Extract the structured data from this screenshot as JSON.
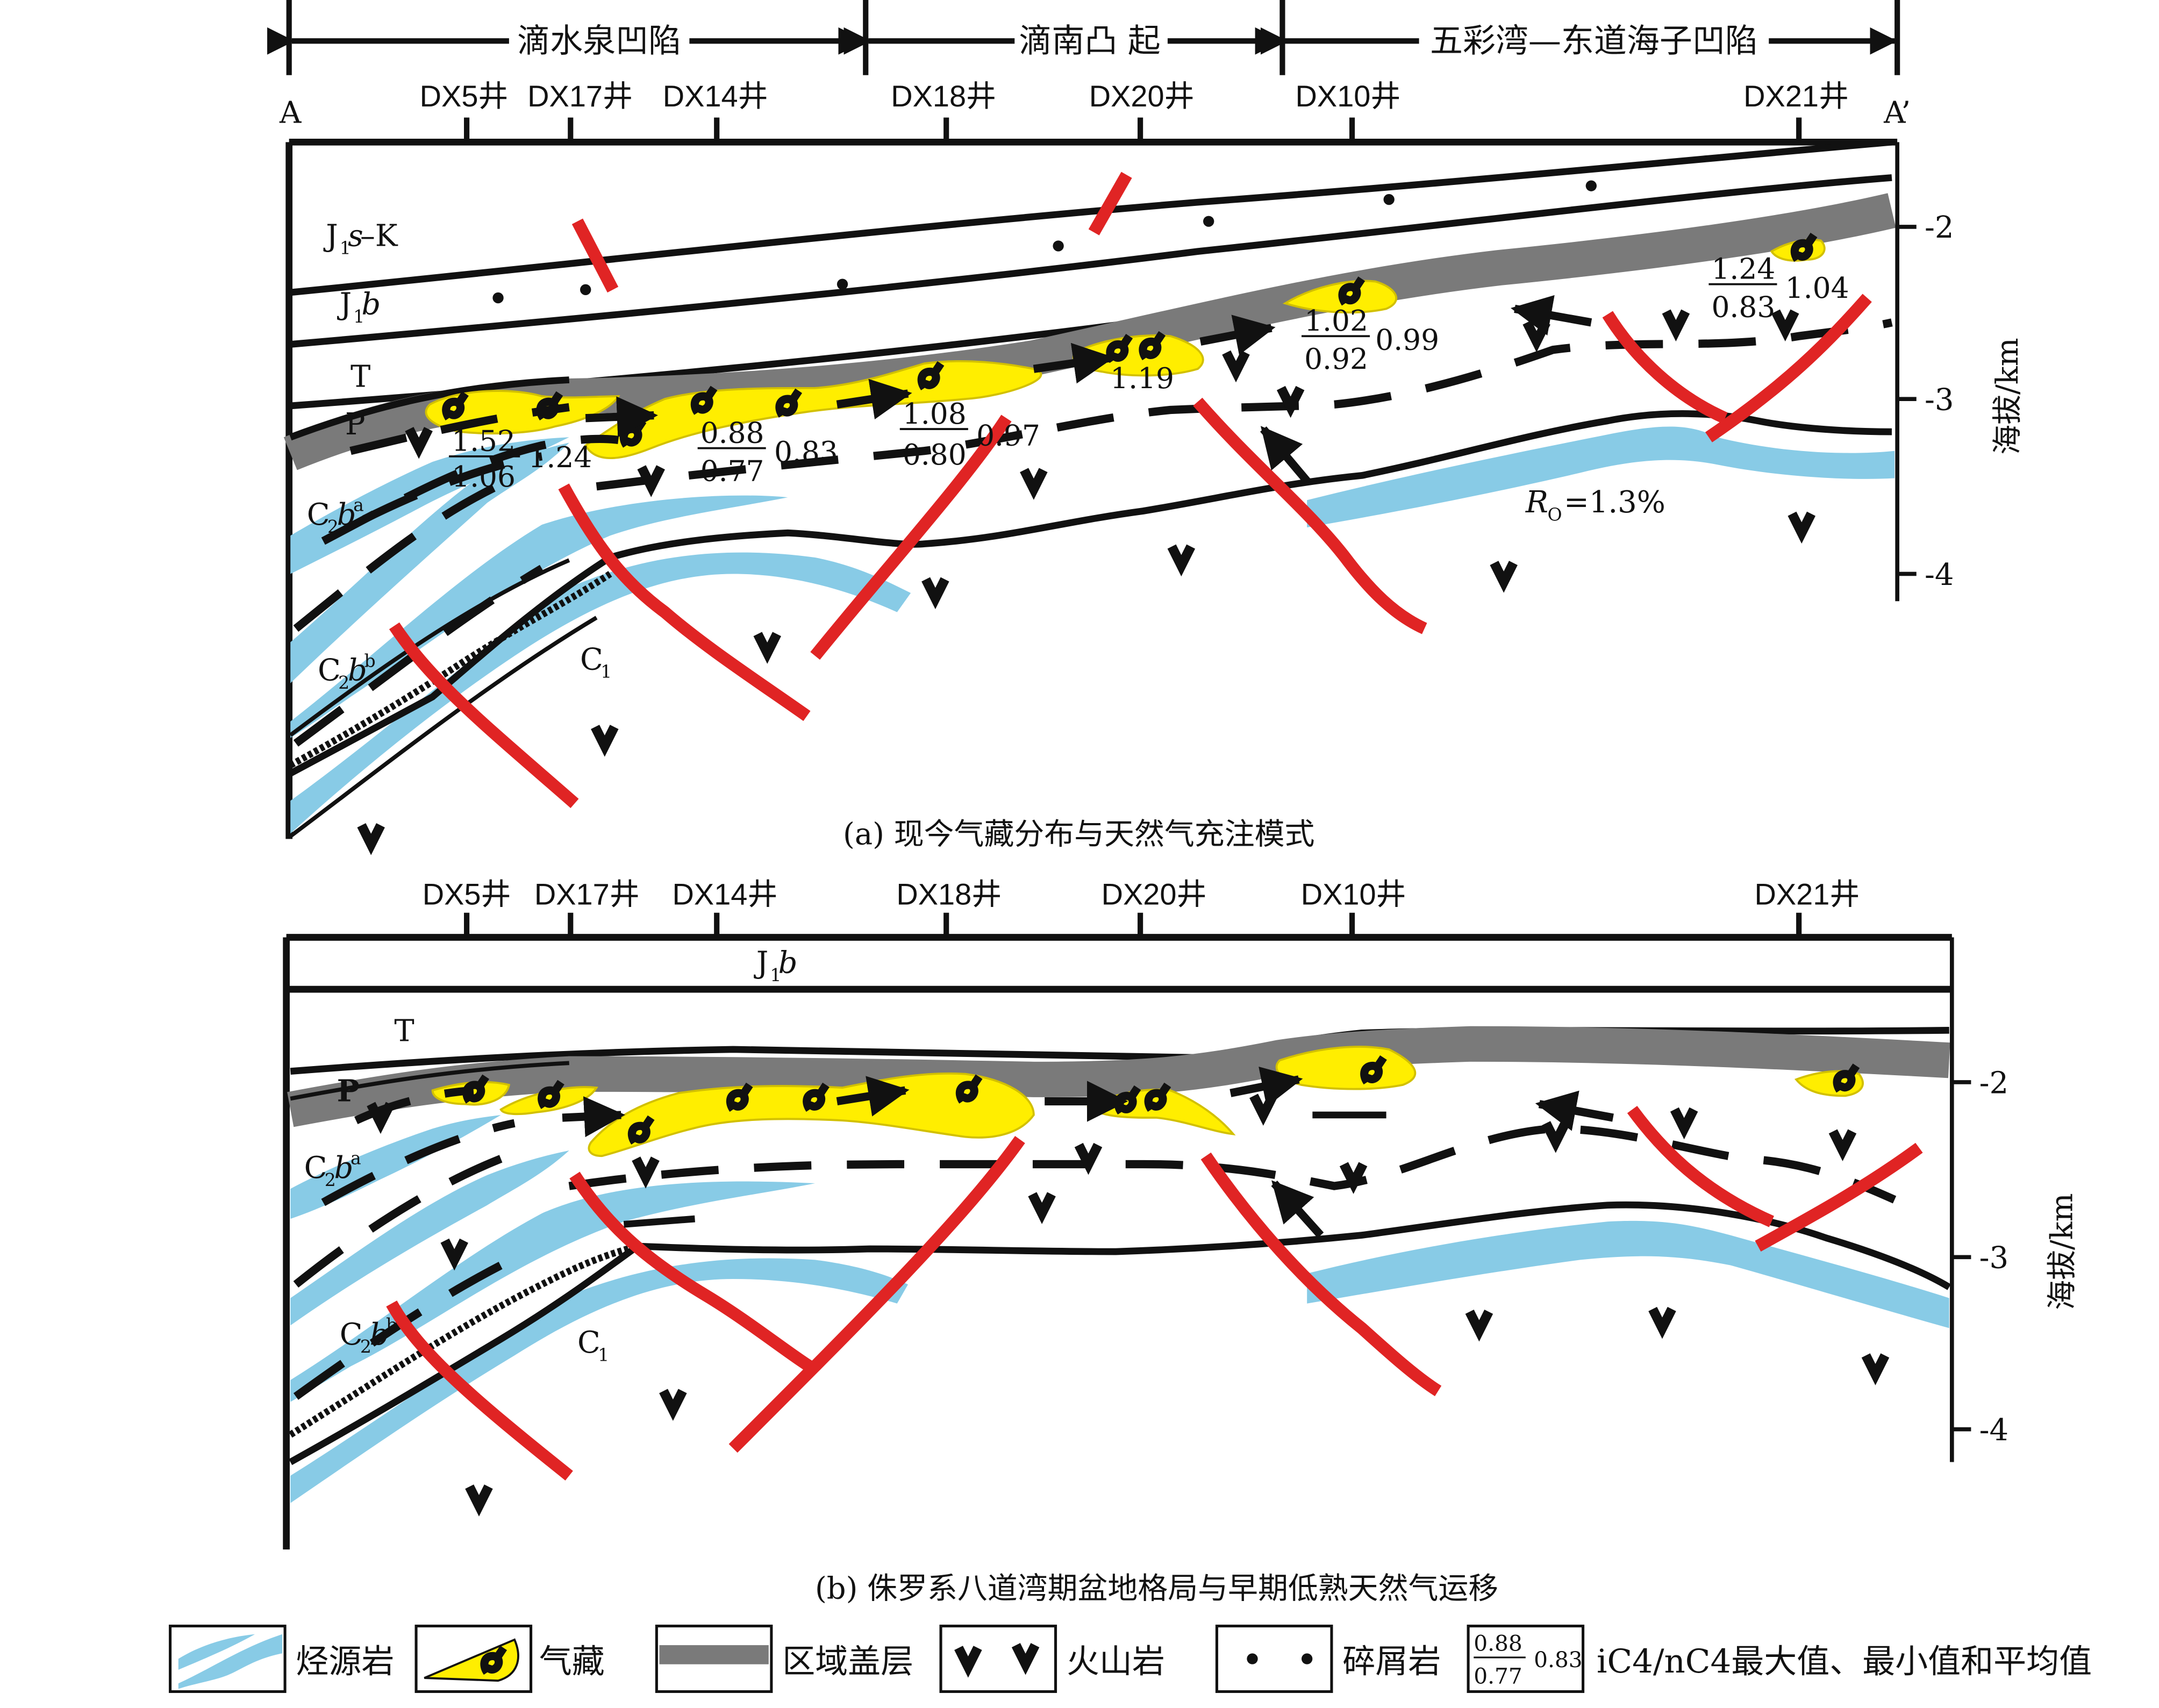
{
  "regions": {
    "left": "滴水泉凹陷",
    "middle": "滴南凸 起",
    "right": "五彩湾—东道海子凹陷"
  },
  "section_ends": {
    "left": "A",
    "right": "A’"
  },
  "wells": [
    "DX5井",
    "DX17井",
    "DX14井",
    "DX18井",
    "DX20井",
    "DX10井",
    "DX21井"
  ],
  "panel_a": {
    "caption": "(a) 现今气藏分布与天然气充注模式",
    "layers": {
      "j1s_k": "J1s–K",
      "j1b": "J1b",
      "t": "T",
      "p": "P",
      "c2ba": "C2ba",
      "c2bb": "C2bb",
      "c1": "C1"
    },
    "ro_label": "RO=1.3%",
    "ratios": [
      {
        "max": "1.52",
        "min": "1.06",
        "avg": "1.24"
      },
      {
        "max": "0.88",
        "min": "0.77",
        "avg": "0.83"
      },
      {
        "max": "1.08",
        "min": "0.80",
        "avg": "0.97"
      },
      {
        "max": "",
        "min": "",
        "avg": "1.19"
      },
      {
        "max": "1.02",
        "min": "0.92",
        "avg": "0.99"
      },
      {
        "max": "1.24",
        "min": "0.83",
        "avg": "1.04"
      }
    ],
    "axis": {
      "title": "海拔/km",
      "ticks": [
        "-2",
        "-3",
        "-4"
      ]
    }
  },
  "panel_b": {
    "caption": "(b) 侏罗系八道湾期盆地格局与早期低熟天然气运移",
    "layers": {
      "j1b": "J1b",
      "t": "T",
      "p": "P",
      "c2ba": "C2ba",
      "c2bb": "C2bb",
      "c1": "C1"
    },
    "axis": {
      "title": "海拔/km",
      "ticks": [
        "-2",
        "-3",
        "-4"
      ]
    }
  },
  "legend": {
    "source_rock": "烃源岩",
    "gas_reservoir": "气藏",
    "regional_cap": "区域盖层",
    "volcanic": "火山岩",
    "clastic": "碎屑岩",
    "ratio_example": {
      "max": "0.88",
      "min": "0.77",
      "avg": "0.83"
    },
    "ratio_desc": "iC4/nC4最大值、最小值和平均值"
  },
  "colors": {
    "source_rock": "#88cbe6",
    "gas": "#ffee00",
    "fault": "#e02424",
    "regional_cap": "#7a7a7a"
  }
}
